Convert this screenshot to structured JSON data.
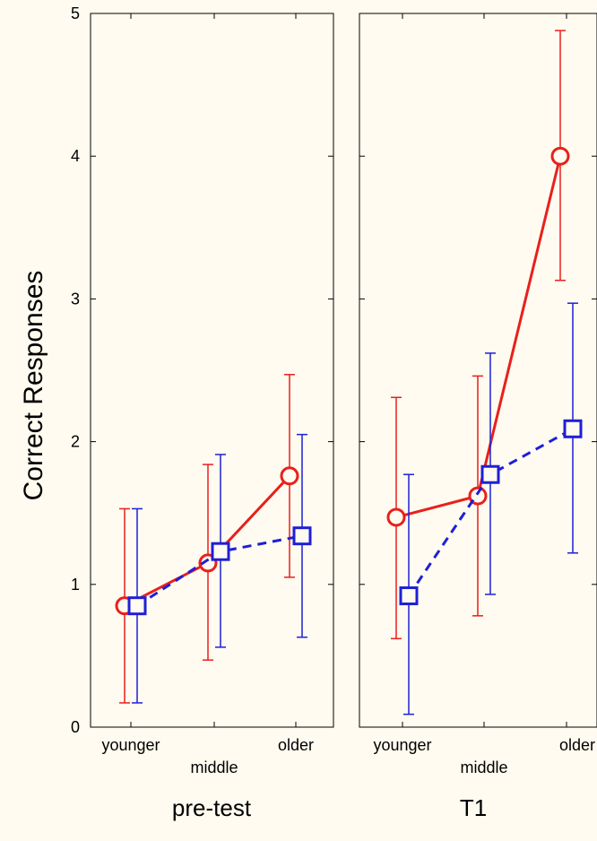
{
  "chart_data": {
    "type": "line",
    "ylabel": "Correct Responses",
    "ylim": [
      0,
      5
    ],
    "yticks": [
      "0",
      "1",
      "2",
      "3",
      "4",
      "5"
    ],
    "categories": [
      "younger",
      "middle",
      "older"
    ],
    "panels": [
      {
        "title": "pre-test",
        "series": [
          {
            "color": "#e8201c",
            "marker": "circle",
            "line": "solid",
            "values": [
              0.85,
              1.15,
              1.76
            ],
            "err_low": [
              0.17,
              0.47,
              1.05
            ],
            "err_high": [
              1.53,
              1.84,
              2.47
            ]
          },
          {
            "color": "#1f1fd6",
            "marker": "square",
            "line": "dashed",
            "values": [
              0.85,
              1.23,
              1.34
            ],
            "err_low": [
              0.17,
              0.56,
              0.63
            ],
            "err_high": [
              1.53,
              1.91,
              2.05
            ]
          }
        ]
      },
      {
        "title": "T1",
        "series": [
          {
            "color": "#e8201c",
            "marker": "circle",
            "line": "solid",
            "values": [
              1.47,
              1.62,
              4.0
            ],
            "err_low": [
              0.62,
              0.78,
              3.13
            ],
            "err_high": [
              2.31,
              2.46,
              4.88
            ]
          },
          {
            "color": "#1f1fd6",
            "marker": "square",
            "line": "dashed",
            "values": [
              0.92,
              1.77,
              2.09
            ],
            "err_low": [
              0.09,
              0.93,
              1.22
            ],
            "err_high": [
              1.77,
              2.62,
              2.97
            ]
          }
        ]
      }
    ]
  }
}
